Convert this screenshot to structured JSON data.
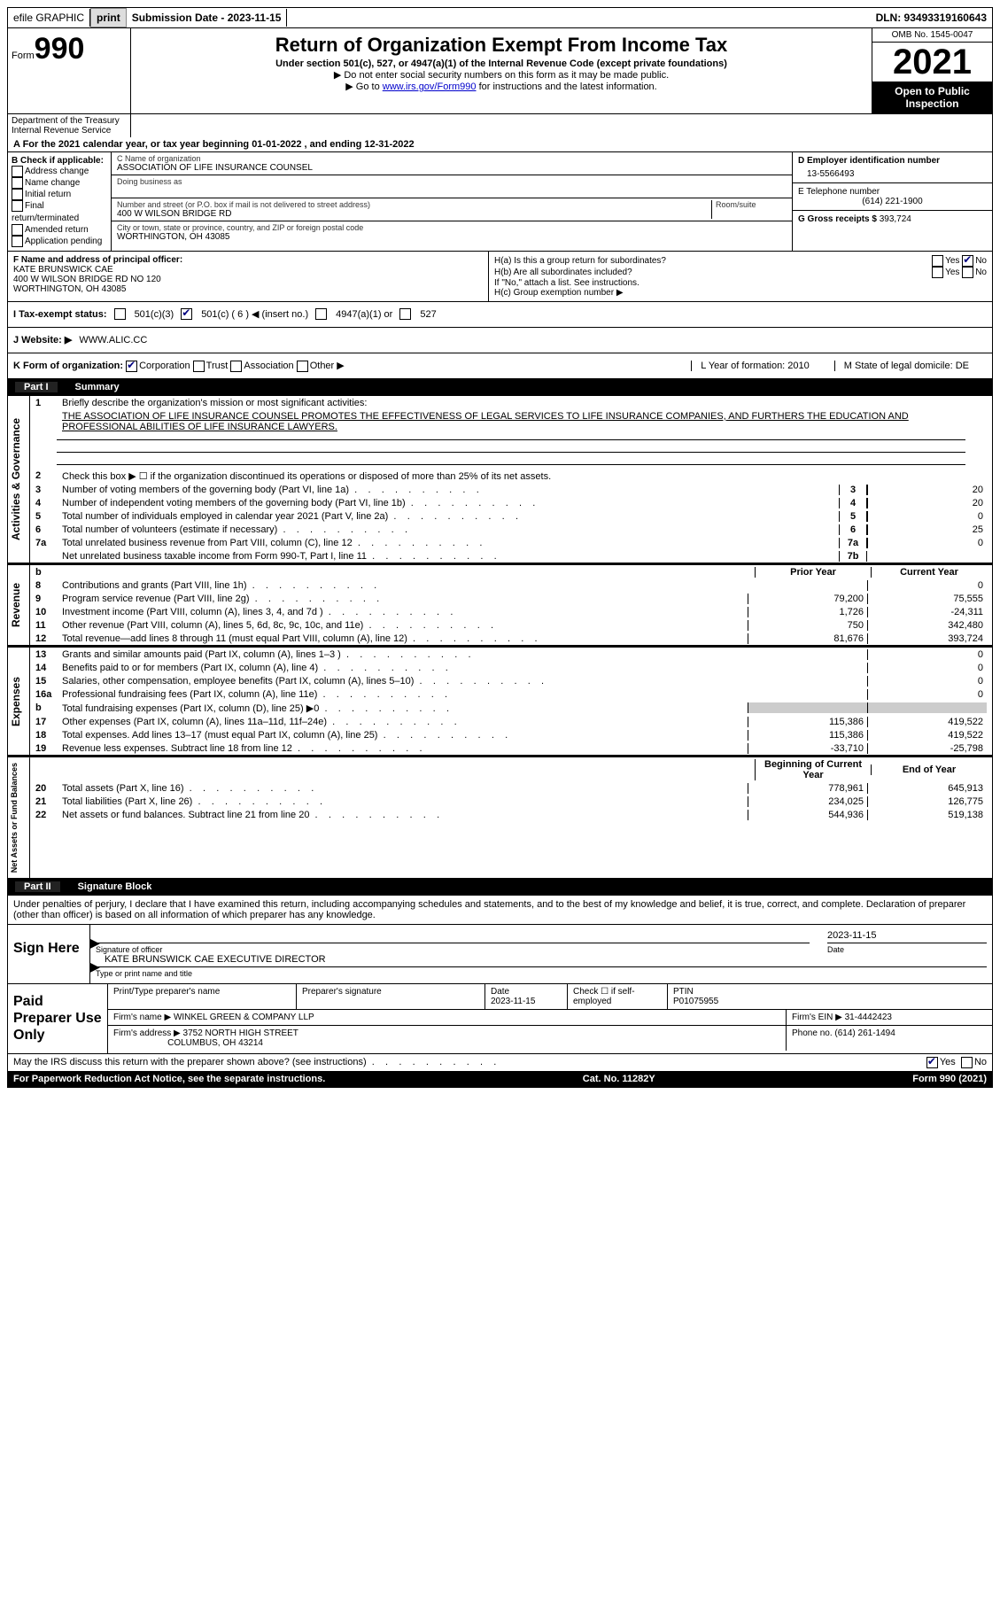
{
  "topbar": {
    "efile": "efile GRAPHIC",
    "print": "print",
    "sub_label": "Submission Date - 2023-11-15",
    "dln": "DLN: 93493319160643"
  },
  "header": {
    "form_word": "Form",
    "form_num": "990",
    "title": "Return of Organization Exempt From Income Tax",
    "subtitle": "Under section 501(c), 527, or 4947(a)(1) of the Internal Revenue Code (except private foundations)",
    "note1": "▶ Do not enter social security numbers on this form as it may be made public.",
    "note2_pre": "▶ Go to ",
    "note2_link": "www.irs.gov/Form990",
    "note2_post": " for instructions and the latest information.",
    "dept": "Department of the Treasury Internal Revenue Service",
    "omb": "OMB No. 1545-0047",
    "year": "2021",
    "inspect": "Open to Public Inspection"
  },
  "a_line": "A For the 2021 calendar year, or tax year beginning 01-01-2022    , and ending 12-31-2022",
  "col_b": {
    "title": "B Check if applicable:",
    "opts": [
      "Address change",
      "Name change",
      "Initial return",
      "Final return/terminated",
      "Amended return",
      "Application pending"
    ]
  },
  "col_c": {
    "name_label": "C Name of organization",
    "name": "ASSOCIATION OF LIFE INSURANCE COUNSEL",
    "dba_label": "Doing business as",
    "street_label": "Number and street (or P.O. box if mail is not delivered to street address)",
    "room_label": "Room/suite",
    "street": "400 W WILSON BRIDGE RD",
    "city_label": "City or town, state or province, country, and ZIP or foreign postal code",
    "city": "WORTHINGTON, OH   43085"
  },
  "col_d": {
    "ein_label": "D Employer identification number",
    "ein": "13-5566493",
    "tel_label": "E Telephone number",
    "tel": "(614) 221-1900",
    "gross_label": "G Gross receipts $",
    "gross": "393,724"
  },
  "f_box": {
    "label": "F Name and address of principal officer:",
    "name": "KATE BRUNSWICK CAE",
    "addr1": "400 W WILSON BRIDGE RD NO 120",
    "addr2": "WORTHINGTON, OH  43085"
  },
  "h_box": {
    "ha": "H(a)  Is this a group return for subordinates?",
    "hb": "H(b)  Are all subordinates included?",
    "hb_note": "If \"No,\" attach a list. See instructions.",
    "hc": "H(c)  Group exemption number ▶",
    "yes": "Yes",
    "no": "No"
  },
  "tax_row": {
    "label": "I  Tax-exempt status:",
    "o1": "501(c)(3)",
    "o2": "501(c) ( 6 ) ◀ (insert no.)",
    "o3": "4947(a)(1) or",
    "o4": "527"
  },
  "j_row": {
    "label": "J  Website: ▶",
    "val": "WWW.ALIC.CC"
  },
  "k_row": {
    "label": "K Form of organization:",
    "o1": "Corporation",
    "o2": "Trust",
    "o3": "Association",
    "o4": "Other ▶",
    "l": "L Year of formation: 2010",
    "m": "M State of legal domicile: DE"
  },
  "part1": {
    "pn": "Part I",
    "title": "Summary"
  },
  "summary": {
    "l1_label": "Briefly describe the organization's mission or most significant activities:",
    "l1_text": "THE ASSOCIATION OF LIFE INSURANCE COUNSEL PROMOTES THE EFFECTIVENESS OF LEGAL SERVICES TO LIFE INSURANCE COMPANIES, AND FURTHERS THE EDUCATION AND PROFESSIONAL ABILITIES OF LIFE INSURANCE LAWYERS.",
    "l2": "Check this box ▶ ☐  if the organization discontinued its operations or disposed of more than 25% of its net assets.",
    "rows_ag": [
      {
        "n": "3",
        "d": "Number of voting members of the governing body (Part VI, line 1a)",
        "c": "3",
        "v": "20"
      },
      {
        "n": "4",
        "d": "Number of independent voting members of the governing body (Part VI, line 1b)",
        "c": "4",
        "v": "20"
      },
      {
        "n": "5",
        "d": "Total number of individuals employed in calendar year 2021 (Part V, line 2a)",
        "c": "5",
        "v": "0"
      },
      {
        "n": "6",
        "d": "Total number of volunteers (estimate if necessary)",
        "c": "6",
        "v": "25"
      },
      {
        "n": "7a",
        "d": "Total unrelated business revenue from Part VIII, column (C), line 12",
        "c": "7a",
        "v": "0"
      },
      {
        "n": "",
        "d": "Net unrelated business taxable income from Form 990-T, Part I, line 11",
        "c": "7b",
        "v": ""
      }
    ],
    "hdr_prior": "Prior Year",
    "hdr_curr": "Current Year",
    "rev": [
      {
        "n": "8",
        "d": "Contributions and grants (Part VIII, line 1h)",
        "p": "",
        "c": "0"
      },
      {
        "n": "9",
        "d": "Program service revenue (Part VIII, line 2g)",
        "p": "79,200",
        "c": "75,555"
      },
      {
        "n": "10",
        "d": "Investment income (Part VIII, column (A), lines 3, 4, and 7d )",
        "p": "1,726",
        "c": "-24,311"
      },
      {
        "n": "11",
        "d": "Other revenue (Part VIII, column (A), lines 5, 6d, 8c, 9c, 10c, and 11e)",
        "p": "750",
        "c": "342,480"
      },
      {
        "n": "12",
        "d": "Total revenue—add lines 8 through 11 (must equal Part VIII, column (A), line 12)",
        "p": "81,676",
        "c": "393,724"
      }
    ],
    "exp": [
      {
        "n": "13",
        "d": "Grants and similar amounts paid (Part IX, column (A), lines 1–3 )",
        "p": "",
        "c": "0"
      },
      {
        "n": "14",
        "d": "Benefits paid to or for members (Part IX, column (A), line 4)",
        "p": "",
        "c": "0"
      },
      {
        "n": "15",
        "d": "Salaries, other compensation, employee benefits (Part IX, column (A), lines 5–10)",
        "p": "",
        "c": "0"
      },
      {
        "n": "16a",
        "d": "Professional fundraising fees (Part IX, column (A), line 11e)",
        "p": "",
        "c": "0"
      },
      {
        "n": "b",
        "d": "Total fundraising expenses (Part IX, column (D), line 25) ▶0",
        "p": "shaded",
        "c": "shaded"
      },
      {
        "n": "17",
        "d": "Other expenses (Part IX, column (A), lines 11a–11d, 11f–24e)",
        "p": "115,386",
        "c": "419,522"
      },
      {
        "n": "18",
        "d": "Total expenses. Add lines 13–17 (must equal Part IX, column (A), line 25)",
        "p": "115,386",
        "c": "419,522"
      },
      {
        "n": "19",
        "d": "Revenue less expenses. Subtract line 18 from line 12",
        "p": "-33,710",
        "c": "-25,798"
      }
    ],
    "hdr_boy": "Beginning of Current Year",
    "hdr_eoy": "End of Year",
    "net": [
      {
        "n": "20",
        "d": "Total assets (Part X, line 16)",
        "p": "778,961",
        "c": "645,913"
      },
      {
        "n": "21",
        "d": "Total liabilities (Part X, line 26)",
        "p": "234,025",
        "c": "126,775"
      },
      {
        "n": "22",
        "d": "Net assets or fund balances. Subtract line 21 from line 20",
        "p": "544,936",
        "c": "519,138"
      }
    ]
  },
  "part2": {
    "pn": "Part II",
    "title": "Signature Block"
  },
  "sig_text": "Under penalties of perjury, I declare that I have examined this return, including accompanying schedules and statements, and to the best of my knowledge and belief, it is true, correct, and complete. Declaration of preparer (other than officer) is based on all information of which preparer has any knowledge.",
  "sign": {
    "left": "Sign Here",
    "sig_label": "Signature of officer",
    "date": "2023-11-15",
    "date_label": "Date",
    "name": "KATE BRUNSWICK CAE  EXECUTIVE DIRECTOR",
    "name_label": "Type or print name and title"
  },
  "prep": {
    "left": "Paid Preparer Use Only",
    "h1": "Print/Type preparer's name",
    "h2": "Preparer's signature",
    "h3": "Date",
    "h3v": "2023-11-15",
    "h4": "Check ☐ if self-employed",
    "h5": "PTIN",
    "h5v": "P01075955",
    "firm_label": "Firm's name     ▶",
    "firm": "WINKEL GREEN & COMPANY LLP",
    "ein_label": "Firm's EIN ▶",
    "ein": "31-4442423",
    "addr_label": "Firm's address ▶",
    "addr1": "3752 NORTH HIGH STREET",
    "addr2": "COLUMBUS, OH  43214",
    "phone_label": "Phone no.",
    "phone": "(614) 261-1494"
  },
  "discuss": "May the IRS discuss this return with the preparer shown above? (see instructions)",
  "footer": {
    "l": "For Paperwork Reduction Act Notice, see the separate instructions.",
    "c": "Cat. No. 11282Y",
    "r": "Form 990 (2021)"
  },
  "labels": {
    "ag": "Activities & Governance",
    "rev": "Revenue",
    "exp": "Expenses",
    "net": "Net Assets or Fund Balances"
  }
}
